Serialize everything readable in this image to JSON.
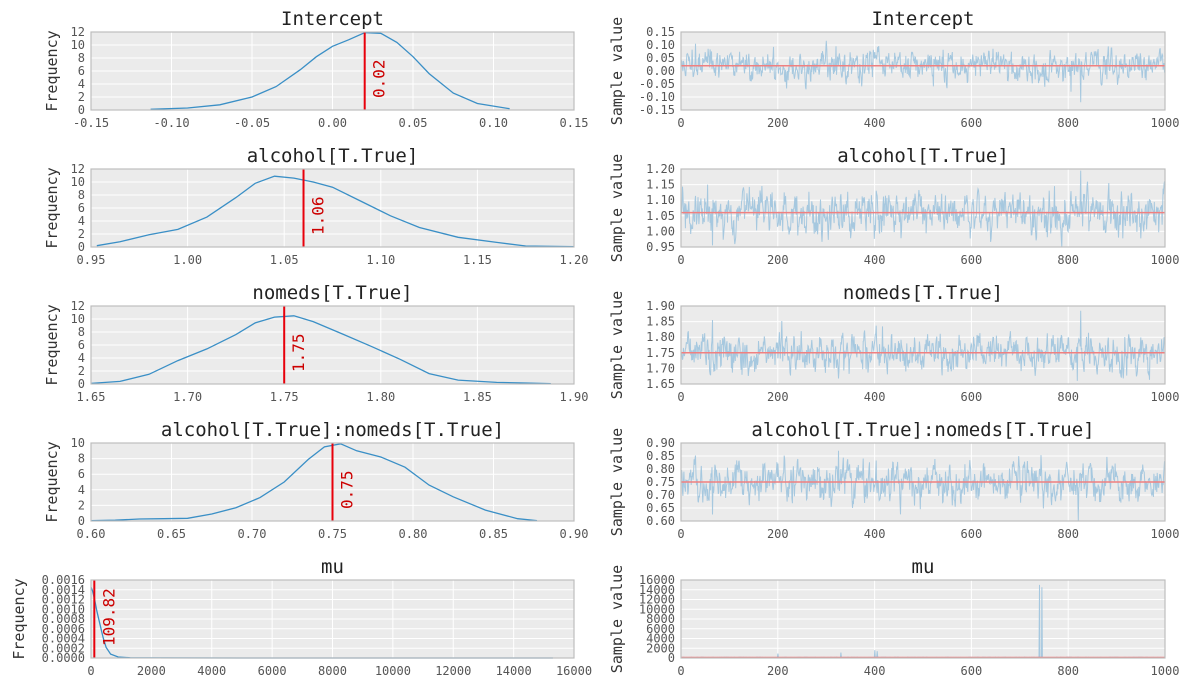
{
  "style": {
    "panel_bg": "#ebebeb",
    "grid_color": "#ffffff",
    "kde_color": "#3a8fc6",
    "trace_color": "#a6c8df",
    "mean_color": "#e8000b",
    "trace_mean_color": "#f08080",
    "frame_color": "#bdbdbd"
  },
  "chart_data": [
    {
      "type": "line",
      "panel": "posterior",
      "title": "Intercept",
      "ylabel": "Frequency",
      "xlim": [
        -0.15,
        0.15
      ],
      "ylim": [
        0,
        12
      ],
      "xticks": [
        "-0.15",
        "-0.10",
        "-0.05",
        "0.00",
        "0.05",
        "0.10",
        "0.15"
      ],
      "yticks": [
        "0",
        "2",
        "4",
        "6",
        "8",
        "10",
        "12"
      ],
      "mean": 0.02,
      "mean_label": "0.02",
      "x": [
        -0.113,
        -0.09,
        -0.07,
        -0.05,
        -0.035,
        -0.02,
        -0.01,
        0.0,
        0.01,
        0.02,
        0.03,
        0.04,
        0.05,
        0.06,
        0.075,
        0.09,
        0.11
      ],
      "y": [
        0.1,
        0.3,
        0.8,
        2.0,
        3.6,
        6.2,
        8.2,
        9.8,
        10.8,
        11.9,
        11.8,
        10.4,
        8.2,
        5.6,
        2.6,
        1.0,
        0.2
      ]
    },
    {
      "type": "line",
      "panel": "trace",
      "title": "Intercept",
      "ylabel": "Sample value",
      "xlim": [
        0,
        1000
      ],
      "ylim": [
        -0.15,
        0.15
      ],
      "xticks": [
        "0",
        "200",
        "400",
        "600",
        "800",
        "1000"
      ],
      "yticks": [
        "-0.15",
        "-0.10",
        "-0.05",
        "0.00",
        "0.05",
        "0.10",
        "0.15"
      ],
      "mean": 0.02,
      "n": 1000,
      "sd": 0.03,
      "spikes": [
        [
          30,
          0.105
        ],
        [
          320,
          0.095
        ],
        [
          805,
          -0.08
        ],
        [
          825,
          -0.12
        ]
      ]
    },
    {
      "type": "line",
      "panel": "posterior",
      "title": "alcohol[T.True]",
      "ylabel": "Frequency",
      "xlim": [
        0.95,
        1.2
      ],
      "ylim": [
        0,
        12
      ],
      "xticks": [
        "0.95",
        "1.00",
        "1.05",
        "1.10",
        "1.15",
        "1.20"
      ],
      "yticks": [
        "0",
        "2",
        "4",
        "6",
        "8",
        "10",
        "12"
      ],
      "mean": 1.06,
      "mean_label": "1.06",
      "x": [
        0.953,
        0.965,
        0.98,
        0.995,
        1.01,
        1.025,
        1.035,
        1.045,
        1.055,
        1.065,
        1.075,
        1.09,
        1.105,
        1.12,
        1.14,
        1.16,
        1.175,
        1.2
      ],
      "y": [
        0.2,
        0.8,
        1.9,
        2.7,
        4.6,
        7.6,
        9.8,
        10.9,
        10.6,
        10.0,
        9.2,
        7.0,
        4.8,
        3.0,
        1.5,
        0.7,
        0.15,
        0.05
      ]
    },
    {
      "type": "line",
      "panel": "trace",
      "title": "alcohol[T.True]",
      "ylabel": "Sample value",
      "xlim": [
        0,
        1000
      ],
      "ylim": [
        0.95,
        1.2
      ],
      "xticks": [
        "0",
        "200",
        "400",
        "600",
        "800",
        "1000"
      ],
      "yticks": [
        "0.95",
        "1.00",
        "1.05",
        "1.10",
        "1.15",
        "1.20"
      ],
      "mean": 1.06,
      "n": 1000,
      "sd": 0.035,
      "spikes": [
        [
          55,
          1.15
        ],
        [
          65,
          0.955
        ],
        [
          825,
          1.195
        ]
      ]
    },
    {
      "type": "line",
      "panel": "posterior",
      "title": "nomeds[T.True]",
      "ylabel": "Frequency",
      "xlim": [
        1.65,
        1.9
      ],
      "ylim": [
        0,
        12
      ],
      "xticks": [
        "1.65",
        "1.70",
        "1.75",
        "1.80",
        "1.85",
        "1.90"
      ],
      "yticks": [
        "0",
        "2",
        "4",
        "6",
        "8",
        "10",
        "12"
      ],
      "mean": 1.75,
      "mean_label": "1.75",
      "x": [
        1.65,
        1.665,
        1.68,
        1.695,
        1.71,
        1.725,
        1.735,
        1.745,
        1.755,
        1.765,
        1.78,
        1.795,
        1.81,
        1.825,
        1.84,
        1.86,
        1.875,
        1.888
      ],
      "y": [
        0.1,
        0.4,
        1.5,
        3.6,
        5.4,
        7.6,
        9.4,
        10.3,
        10.5,
        9.6,
        7.7,
        5.8,
        3.8,
        1.6,
        0.6,
        0.25,
        0.15,
        0.05
      ]
    },
    {
      "type": "line",
      "panel": "trace",
      "title": "nomeds[T.True]",
      "ylabel": "Sample value",
      "xlim": [
        0,
        1000
      ],
      "ylim": [
        1.65,
        1.9
      ],
      "xticks": [
        "0",
        "200",
        "400",
        "600",
        "800",
        "1000"
      ],
      "yticks": [
        "1.65",
        "1.70",
        "1.75",
        "1.80",
        "1.85",
        "1.90"
      ],
      "mean": 1.75,
      "n": 1000,
      "sd": 0.03,
      "spikes": [
        [
          65,
          1.855
        ],
        [
          825,
          1.885
        ],
        [
          818,
          1.66
        ]
      ]
    },
    {
      "type": "line",
      "panel": "posterior",
      "title": "alcohol[T.True]:nomeds[T.True]",
      "ylabel": "Frequency",
      "xlim": [
        0.6,
        0.9
      ],
      "ylim": [
        0,
        10
      ],
      "xticks": [
        "0.60",
        "0.65",
        "0.70",
        "0.75",
        "0.80",
        "0.85",
        "0.90"
      ],
      "yticks": [
        "0",
        "2",
        "4",
        "6",
        "8",
        "10"
      ],
      "mean": 0.75,
      "mean_label": "0.75",
      "x": [
        0.6,
        0.615,
        0.63,
        0.645,
        0.66,
        0.675,
        0.69,
        0.705,
        0.72,
        0.735,
        0.745,
        0.755,
        0.765,
        0.78,
        0.795,
        0.81,
        0.825,
        0.845,
        0.865,
        0.877
      ],
      "y": [
        0.05,
        0.1,
        0.25,
        0.3,
        0.35,
        0.9,
        1.7,
        3.0,
        5.0,
        7.9,
        9.5,
        9.9,
        9.0,
        8.2,
        6.9,
        4.6,
        3.1,
        1.4,
        0.3,
        0.05
      ]
    },
    {
      "type": "line",
      "panel": "trace",
      "title": "alcohol[T.True]:nomeds[T.True]",
      "ylabel": "Sample value",
      "xlim": [
        0,
        1000
      ],
      "ylim": [
        0.6,
        0.9
      ],
      "xticks": [
        "0",
        "200",
        "400",
        "600",
        "800",
        "1000"
      ],
      "yticks": [
        "0.60",
        "0.65",
        "0.70",
        "0.75",
        "0.80",
        "0.85",
        "0.90"
      ],
      "mean": 0.75,
      "n": 1000,
      "sd": 0.04,
      "spikes": [
        [
          65,
          0.625
        ],
        [
          325,
          0.87
        ],
        [
          820,
          0.6
        ]
      ]
    },
    {
      "type": "line",
      "panel": "posterior",
      "title": "mu",
      "ylabel": "Frequency",
      "xlim": [
        0,
        16000
      ],
      "ylim": [
        0,
        0.0016
      ],
      "xticks": [
        "0",
        "2000",
        "4000",
        "6000",
        "8000",
        "10000",
        "12000",
        "14000",
        "16000"
      ],
      "yticks": [
        "0.0000",
        "0.0002",
        "0.0004",
        "0.0006",
        "0.0008",
        "0.0010",
        "0.0012",
        "0.0014",
        "0.0016"
      ],
      "mean": 109.82,
      "mean_label": "109.82",
      "x": [
        0,
        50,
        120,
        200,
        300,
        400,
        500,
        650,
        900,
        1300,
        2000,
        5000,
        10000,
        15300
      ],
      "y": [
        0.00145,
        0.00138,
        0.0012,
        0.00095,
        0.00068,
        0.00042,
        0.00022,
        8e-05,
        2e-05,
        5e-06,
        2e-06,
        1e-06,
        1e-06,
        1e-06
      ]
    },
    {
      "type": "line",
      "panel": "trace",
      "title": "mu",
      "ylabel": "Sample value",
      "xlim": [
        0,
        1000
      ],
      "ylim": [
        0,
        16000
      ],
      "xticks": [
        "0",
        "200",
        "400",
        "600",
        "800",
        "1000"
      ],
      "yticks": [
        "0",
        "2000",
        "4000",
        "6000",
        "8000",
        "10000",
        "12000",
        "14000",
        "16000"
      ],
      "mean": 109.82,
      "n": 1000,
      "sd": 25,
      "spikes": [
        [
          200,
          900
        ],
        [
          330,
          1100
        ],
        [
          400,
          1600
        ],
        [
          405,
          1400
        ],
        [
          740,
          15000
        ],
        [
          745,
          14500
        ]
      ]
    }
  ]
}
